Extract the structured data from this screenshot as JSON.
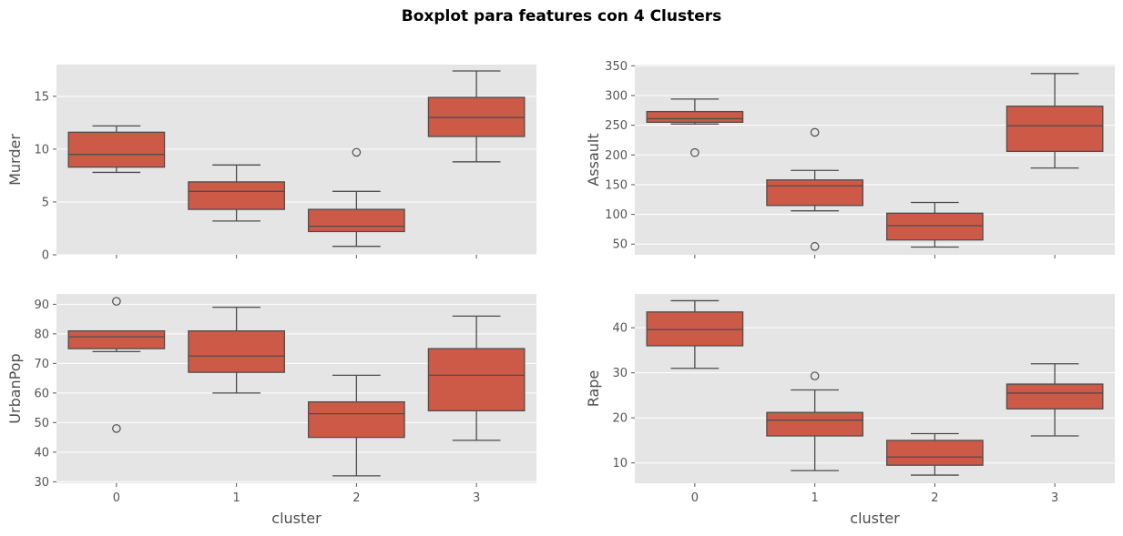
{
  "figure_title": "Boxplot para features con 4 Clusters",
  "colors": {
    "panel_background": "#e5e5e5",
    "grid": "#ffffff",
    "box_fill": "#cd5a47",
    "line": "#4d4d4d",
    "text": "#4d4d4d",
    "tick_text": "#555555"
  },
  "chart_data": [
    {
      "type": "box",
      "title": "",
      "xlabel": "",
      "ylabel": "Murder",
      "categories": [
        "0",
        "1",
        "2",
        "3"
      ],
      "ylim": [
        0,
        18
      ],
      "yticks": [
        0,
        5,
        10,
        15
      ],
      "grid": true,
      "boxes": [
        {
          "category": "0",
          "whisker_low": 7.8,
          "q1": 8.3,
          "median": 9.5,
          "q3": 11.6,
          "whisker_high": 12.2,
          "outliers": []
        },
        {
          "category": "1",
          "whisker_low": 3.2,
          "q1": 4.3,
          "median": 6.0,
          "q3": 6.9,
          "whisker_high": 8.5,
          "outliers": []
        },
        {
          "category": "2",
          "whisker_low": 0.8,
          "q1": 2.2,
          "median": 2.7,
          "q3": 4.3,
          "whisker_high": 6.0,
          "outliers": [
            9.7
          ]
        },
        {
          "category": "3",
          "whisker_low": 8.8,
          "q1": 11.2,
          "median": 13.0,
          "q3": 14.9,
          "whisker_high": 17.4,
          "outliers": []
        }
      ]
    },
    {
      "type": "box",
      "title": "",
      "xlabel": "",
      "ylabel": "Assault",
      "categories": [
        "0",
        "1",
        "2",
        "3"
      ],
      "ylim": [
        32,
        352
      ],
      "yticks": [
        50,
        100,
        150,
        200,
        250,
        300,
        350
      ],
      "grid": true,
      "boxes": [
        {
          "category": "0",
          "whisker_low": 252,
          "q1": 255,
          "median": 261,
          "q3": 273,
          "whisker_high": 294,
          "outliers": [
            204
          ]
        },
        {
          "category": "1",
          "whisker_low": 106,
          "q1": 115,
          "median": 148,
          "q3": 158,
          "whisker_high": 174,
          "outliers": [
            238,
            46
          ]
        },
        {
          "category": "2",
          "whisker_low": 45,
          "q1": 57,
          "median": 81,
          "q3": 102,
          "whisker_high": 120,
          "outliers": []
        },
        {
          "category": "3",
          "whisker_low": 178,
          "q1": 206,
          "median": 249,
          "q3": 282,
          "whisker_high": 337,
          "outliers": []
        }
      ]
    },
    {
      "type": "box",
      "title": "",
      "xlabel": "cluster",
      "ylabel": "UrbanPop",
      "categories": [
        "0",
        "1",
        "2",
        "3"
      ],
      "ylim": [
        29.5,
        93.5
      ],
      "yticks": [
        30,
        40,
        50,
        60,
        70,
        80,
        90
      ],
      "grid": true,
      "boxes": [
        {
          "category": "0",
          "whisker_low": 74,
          "q1": 75,
          "median": 79,
          "q3": 81,
          "whisker_high": 81,
          "outliers": [
            91,
            48
          ]
        },
        {
          "category": "1",
          "whisker_low": 60,
          "q1": 67,
          "median": 72.5,
          "q3": 81,
          "whisker_high": 89,
          "outliers": []
        },
        {
          "category": "2",
          "whisker_low": 32,
          "q1": 45,
          "median": 53,
          "q3": 57,
          "whisker_high": 66,
          "outliers": []
        },
        {
          "category": "3",
          "whisker_low": 44,
          "q1": 54,
          "median": 66,
          "q3": 75,
          "whisker_high": 86,
          "outliers": []
        }
      ]
    },
    {
      "type": "box",
      "title": "",
      "xlabel": "cluster",
      "ylabel": "Rape",
      "categories": [
        "0",
        "1",
        "2",
        "3"
      ],
      "ylim": [
        5.5,
        47.5
      ],
      "yticks": [
        10,
        20,
        30,
        40
      ],
      "grid": true,
      "boxes": [
        {
          "category": "0",
          "whisker_low": 31,
          "q1": 36,
          "median": 39.6,
          "q3": 43.5,
          "whisker_high": 46,
          "outliers": []
        },
        {
          "category": "1",
          "whisker_low": 8.3,
          "q1": 16,
          "median": 19.5,
          "q3": 21.2,
          "whisker_high": 26.2,
          "outliers": [
            29.3
          ]
        },
        {
          "category": "2",
          "whisker_low": 7.3,
          "q1": 9.5,
          "median": 11.3,
          "q3": 15,
          "whisker_high": 16.5,
          "outliers": []
        },
        {
          "category": "3",
          "whisker_low": 16,
          "q1": 22,
          "median": 25.5,
          "q3": 27.5,
          "whisker_high": 32,
          "outliers": []
        }
      ]
    }
  ]
}
